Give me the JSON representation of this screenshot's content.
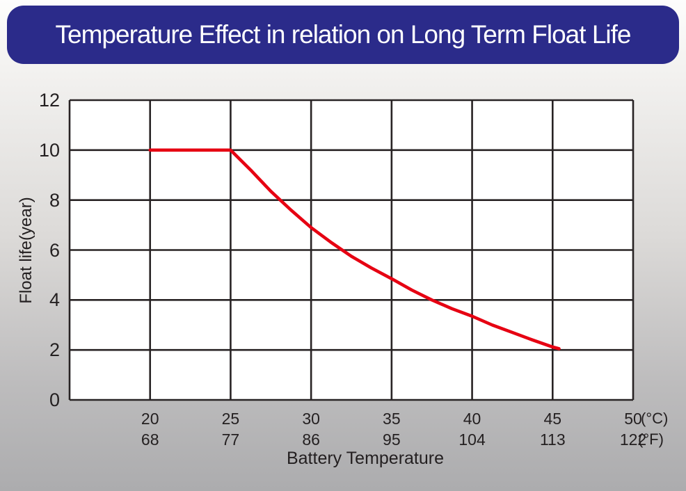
{
  "title": "Temperature Effect in relation on Long Term Float Life",
  "colors": {
    "banner_bg": "#2b2b8a",
    "banner_text": "#ffffff",
    "curve_red": "#e60012",
    "grid_line": "#282324",
    "label_text": "#231f20",
    "plot_bg": "#ffffff"
  },
  "chart_data": {
    "type": "line",
    "title": "Temperature Effect in relation on Long Term Float Life",
    "xlabel": "Battery Temperature",
    "ylabel": "Float life(year)",
    "grid": true,
    "legend": "none",
    "x_axis": {
      "unit_primary": "(°C)",
      "unit_secondary": "(°F)",
      "celsius_ticks": [
        "20",
        "25",
        "30",
        "35",
        "40",
        "45",
        "50"
      ],
      "fahrenheit_ticks": [
        "68",
        "77",
        "86",
        "95",
        "104",
        "113",
        "122"
      ],
      "xlim_celsius": [
        15,
        50
      ],
      "gridline_step_celsius": 5
    },
    "y_axis": {
      "ticks": [
        "0",
        "2",
        "4",
        "6",
        "8",
        "10",
        "12"
      ],
      "ylim": [
        0,
        12
      ],
      "gridline_step": 2
    },
    "series": [
      {
        "name": "float-life-vs-temperature",
        "color": "#e60012",
        "points_celsius_years": [
          [
            20,
            10
          ],
          [
            25,
            10
          ],
          [
            26.25,
            9.2
          ],
          [
            27.5,
            8.35
          ],
          [
            28.75,
            7.6
          ],
          [
            30,
            6.9
          ],
          [
            31.25,
            6.3
          ],
          [
            32.5,
            5.75
          ],
          [
            33.75,
            5.28
          ],
          [
            35,
            4.85
          ],
          [
            36.25,
            4.4
          ],
          [
            37.5,
            4.0
          ],
          [
            38.75,
            3.65
          ],
          [
            40,
            3.35
          ],
          [
            41.25,
            3.0
          ],
          [
            42.5,
            2.7
          ],
          [
            43.75,
            2.4
          ],
          [
            45,
            2.12
          ],
          [
            45.4,
            2.05
          ]
        ]
      }
    ]
  }
}
